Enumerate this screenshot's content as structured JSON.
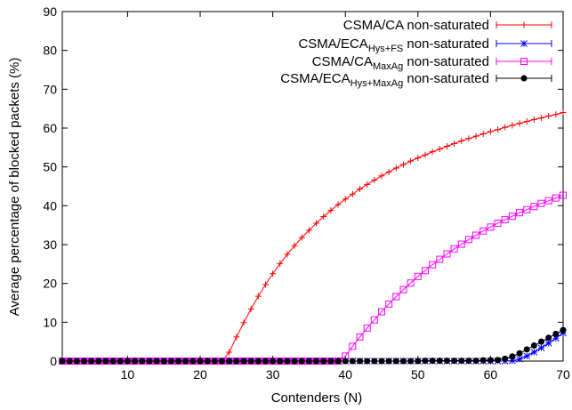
{
  "chart_data": {
    "type": "line",
    "xlabel": "Contenders (N)",
    "ylabel": "Average percentage of blocked packets (%)",
    "xlim": [
      1,
      70
    ],
    "ylim": [
      0,
      90
    ],
    "xticks": [
      10,
      20,
      30,
      40,
      50,
      60,
      70
    ],
    "yticks": [
      0,
      10,
      20,
      30,
      40,
      50,
      60,
      70,
      80,
      90
    ],
    "grid": false,
    "legend_position": "top-right",
    "x": [
      1,
      2,
      3,
      4,
      5,
      6,
      7,
      8,
      9,
      10,
      11,
      12,
      13,
      14,
      15,
      16,
      17,
      18,
      19,
      20,
      21,
      22,
      23,
      24,
      25,
      26,
      27,
      28,
      29,
      30,
      31,
      32,
      33,
      34,
      35,
      36,
      37,
      38,
      39,
      40,
      41,
      42,
      43,
      44,
      45,
      46,
      47,
      48,
      49,
      50,
      51,
      52,
      53,
      54,
      55,
      56,
      57,
      58,
      59,
      60,
      61,
      62,
      63,
      64,
      65,
      66,
      67,
      68,
      69,
      70
    ],
    "series": [
      {
        "name": "CSMA/CA non-saturated",
        "label_main": "CSMA/CA",
        "label_sub": "",
        "label_tail": " non-saturated",
        "color": "#ff0000",
        "marker": "plus",
        "values": [
          0,
          0,
          0,
          0,
          0,
          0,
          0,
          0,
          0,
          0,
          0,
          0,
          0,
          0,
          0,
          0,
          0,
          0,
          0,
          0,
          0,
          0,
          0,
          2.3,
          6.2,
          9.9,
          13.4,
          16.7,
          19.7,
          22.5,
          25.1,
          27.5,
          29.7,
          31.8,
          33.7,
          35.5,
          37.2,
          38.8,
          40.3,
          41.7,
          43.0,
          44.3,
          45.5,
          46.6,
          47.7,
          48.7,
          49.7,
          50.6,
          51.5,
          52.3,
          53.1,
          53.9,
          54.6,
          55.3,
          56.0,
          56.7,
          57.3,
          57.9,
          58.5,
          59.1,
          59.6,
          60.2,
          60.7,
          61.2,
          61.7,
          62.2,
          62.6,
          63.1,
          63.5,
          64.0
        ]
      },
      {
        "name": "CSMA/ECA Hys+FS non-saturated",
        "label_main": "CSMA/ECA",
        "label_sub": "Hys+FS",
        "label_tail": " non-saturated",
        "color": "#0000ff",
        "marker": "star",
        "values": [
          0,
          0,
          0,
          0,
          0,
          0,
          0,
          0,
          0,
          0,
          0,
          0,
          0,
          0,
          0,
          0,
          0,
          0,
          0,
          0,
          0,
          0,
          0,
          0,
          0,
          0,
          0,
          0,
          0,
          0,
          0,
          0,
          0,
          0,
          0,
          0,
          0,
          0,
          0,
          0,
          0,
          0,
          0,
          0,
          0,
          0,
          0,
          0,
          0,
          0,
          0,
          0,
          0,
          0,
          0,
          0,
          0,
          0,
          0,
          0,
          0,
          0,
          0.1,
          0.5,
          1.3,
          2.3,
          3.4,
          4.6,
          5.9,
          7.2
        ]
      },
      {
        "name": "CSMA/CA MaxAg non-saturated",
        "label_main": "CSMA/CA",
        "label_sub": "MaxAg",
        "label_tail": " non-saturated",
        "color": "#ff00ff",
        "marker": "square",
        "values": [
          0,
          0,
          0,
          0,
          0,
          0,
          0,
          0,
          0,
          0,
          0,
          0,
          0,
          0,
          0,
          0,
          0,
          0,
          0,
          0,
          0,
          0,
          0,
          0,
          0,
          0,
          0,
          0,
          0,
          0,
          0,
          0,
          0,
          0,
          0,
          0,
          0,
          0,
          0,
          1.3,
          3.8,
          6.2,
          8.5,
          10.6,
          12.7,
          14.7,
          16.6,
          18.4,
          20.1,
          21.8,
          23.3,
          24.8,
          26.2,
          27.6,
          28.9,
          30.1,
          31.3,
          32.4,
          33.5,
          34.5,
          35.5,
          36.4,
          37.3,
          38.2,
          39.0,
          39.8,
          40.6,
          41.3,
          42.0,
          42.7
        ]
      },
      {
        "name": "CSMA/ECA Hys+MaxAg non-saturated",
        "label_main": "CSMA/ECA",
        "label_sub": "Hys+MaxAg",
        "label_tail": " non-saturated",
        "color": "#000000",
        "marker": "circle",
        "values": [
          0,
          0,
          0,
          0,
          0,
          0,
          0,
          0,
          0,
          0,
          0,
          0,
          0,
          0,
          0,
          0,
          0,
          0,
          0,
          0,
          0,
          0,
          0,
          0,
          0,
          0,
          0,
          0,
          0,
          0,
          0,
          0,
          0,
          0,
          0,
          0,
          0,
          0,
          0,
          0,
          0,
          0,
          0,
          0,
          0,
          0,
          0,
          0,
          0,
          0,
          0.1,
          0.1,
          0.1,
          0.1,
          0.1,
          0.1,
          0.1,
          0.1,
          0.2,
          0.2,
          0.3,
          0.6,
          1.2,
          2.0,
          3.0,
          4.0,
          5.0,
          6.0,
          7.0,
          8.0
        ]
      }
    ]
  }
}
